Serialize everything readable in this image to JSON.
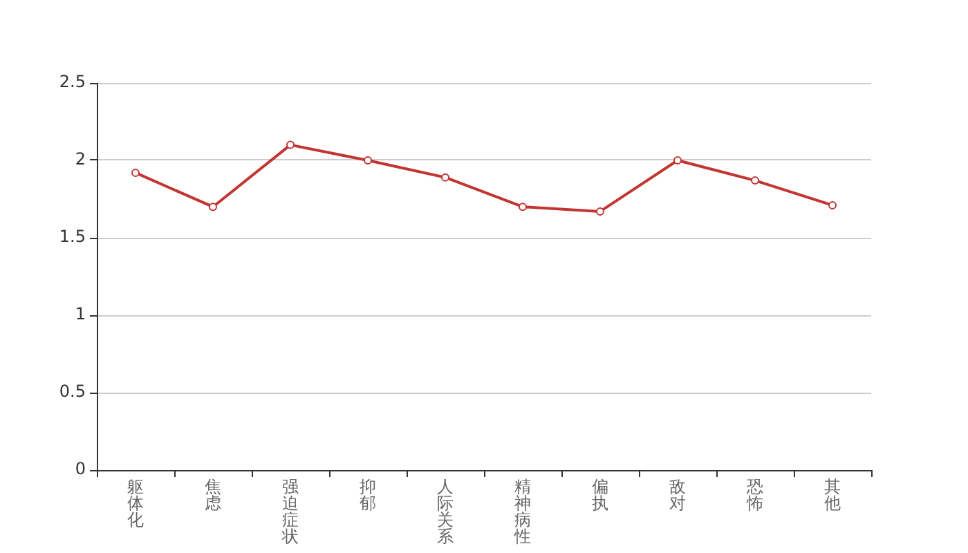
{
  "chart_data": {
    "type": "line",
    "categories": [
      "躯体化",
      "焦虑",
      "强迫症状",
      "抑郁",
      "人际关系",
      "精神病性",
      "偏执",
      "敌对",
      "恐怖",
      "其他"
    ],
    "series": [
      {
        "color": "#c23531",
        "values": [
          1.92,
          1.7,
          2.1,
          2.0,
          1.89,
          1.7,
          1.67,
          2.0,
          1.87,
          1.71
        ]
      }
    ],
    "ylim": [
      0,
      2.5
    ],
    "yticks": [
      0,
      0.5,
      1,
      1.5,
      2,
      2.5
    ],
    "grid": "y",
    "marker": "circle",
    "line_style": "solid"
  }
}
